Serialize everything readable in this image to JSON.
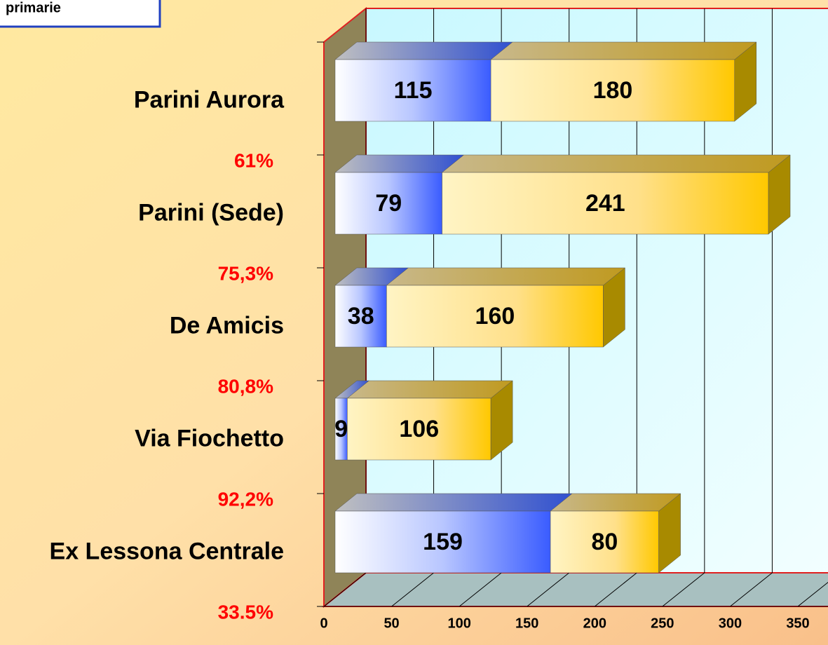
{
  "chart_data": {
    "type": "bar3d_stacked_horizontal",
    "title": "primarie",
    "categories": [
      "Parini Aurora",
      "Parini  (Sede)",
      "De Amicis",
      "Via Fiochetto",
      "Ex Lessona Centrale"
    ],
    "annotations": [
      "61%",
      "75,3%",
      "80,8%",
      "92,2%",
      "33.5%"
    ],
    "annotation_color": "#ff0000",
    "series": [
      {
        "color": "#3a5cff",
        "values": [
          115,
          79,
          38,
          9,
          159
        ]
      },
      {
        "color": "#ffc800",
        "values": [
          180,
          241,
          160,
          106,
          80
        ]
      }
    ],
    "xlim": [
      0,
      350
    ],
    "xticks": [
      0,
      50,
      100,
      150,
      200,
      250,
      300,
      350
    ],
    "grid": true
  }
}
